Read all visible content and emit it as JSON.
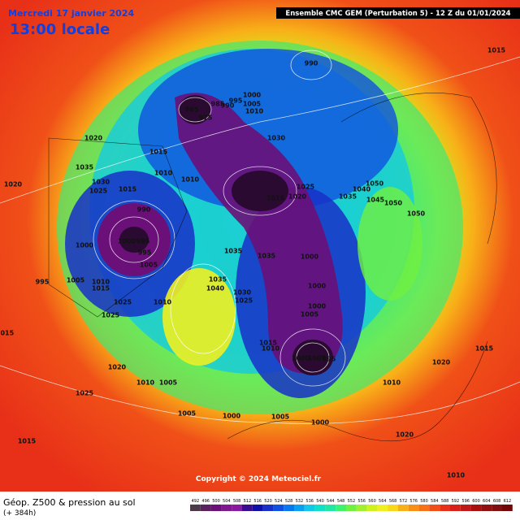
{
  "header": {
    "date": "Mercredi 17 janvier 2024",
    "time": "13:00 locale",
    "model": "Ensemble CMC GEM  (Perturbation 5)  -  12 Z du 01/01/2024"
  },
  "footer": {
    "title": "Géop. Z500 & pression au sol",
    "lead": "(+ 384h)",
    "copyright": "Copyright © 2024 Meteociel.fr"
  },
  "colorbar": {
    "ticks": [
      492,
      496,
      500,
      504,
      508,
      512,
      516,
      520,
      524,
      528,
      532,
      536,
      540,
      544,
      548,
      552,
      556,
      560,
      564,
      568,
      572,
      576,
      580,
      584,
      588,
      592,
      596,
      600,
      604,
      608,
      612
    ],
    "colors": [
      "#4a3a4a",
      "#5a2060",
      "#6a1078",
      "#801890",
      "#8a1aa0",
      "#3a0c90",
      "#1010a8",
      "#1830c8",
      "#1050e0",
      "#0878f0",
      "#08a0f0",
      "#10c8e8",
      "#10e0c8",
      "#20e8a0",
      "#40f070",
      "#70f040",
      "#a0f030",
      "#d0f020",
      "#f0f020",
      "#f8d818",
      "#f8b018",
      "#f89018",
      "#f87018",
      "#f05018",
      "#e83018",
      "#d82018",
      "#c01818",
      "#a81010",
      "#901010",
      "#801010",
      "#700808"
    ]
  },
  "isobars": [
    "990",
    "1015",
    "1000",
    "1005",
    "1010",
    "995",
    "985",
    "990",
    "965",
    "975",
    "1030",
    "1020",
    "1015",
    "1010",
    "1010",
    "1035",
    "1030",
    "1025",
    "1015",
    "1020",
    "1015",
    "1020",
    "1025",
    "1035",
    "1050",
    "1045",
    "1040",
    "1050",
    "1050",
    "990",
    "1000",
    "985",
    "995",
    "1000",
    "1005",
    "995",
    "1005",
    "1010",
    "1015",
    "1035",
    "1035",
    "1000",
    "1000",
    "1035",
    "1040",
    "1030",
    "1025",
    "1025",
    "1010",
    "1025",
    "1000",
    "1005",
    "1015",
    "1010",
    "1000",
    "1005",
    "995",
    "1020",
    "1015",
    "1015",
    "1020",
    "1010",
    "1005",
    "1010",
    "1025",
    "1005",
    "1000",
    "1005",
    "1000",
    "1020",
    "1015",
    "1010"
  ]
}
